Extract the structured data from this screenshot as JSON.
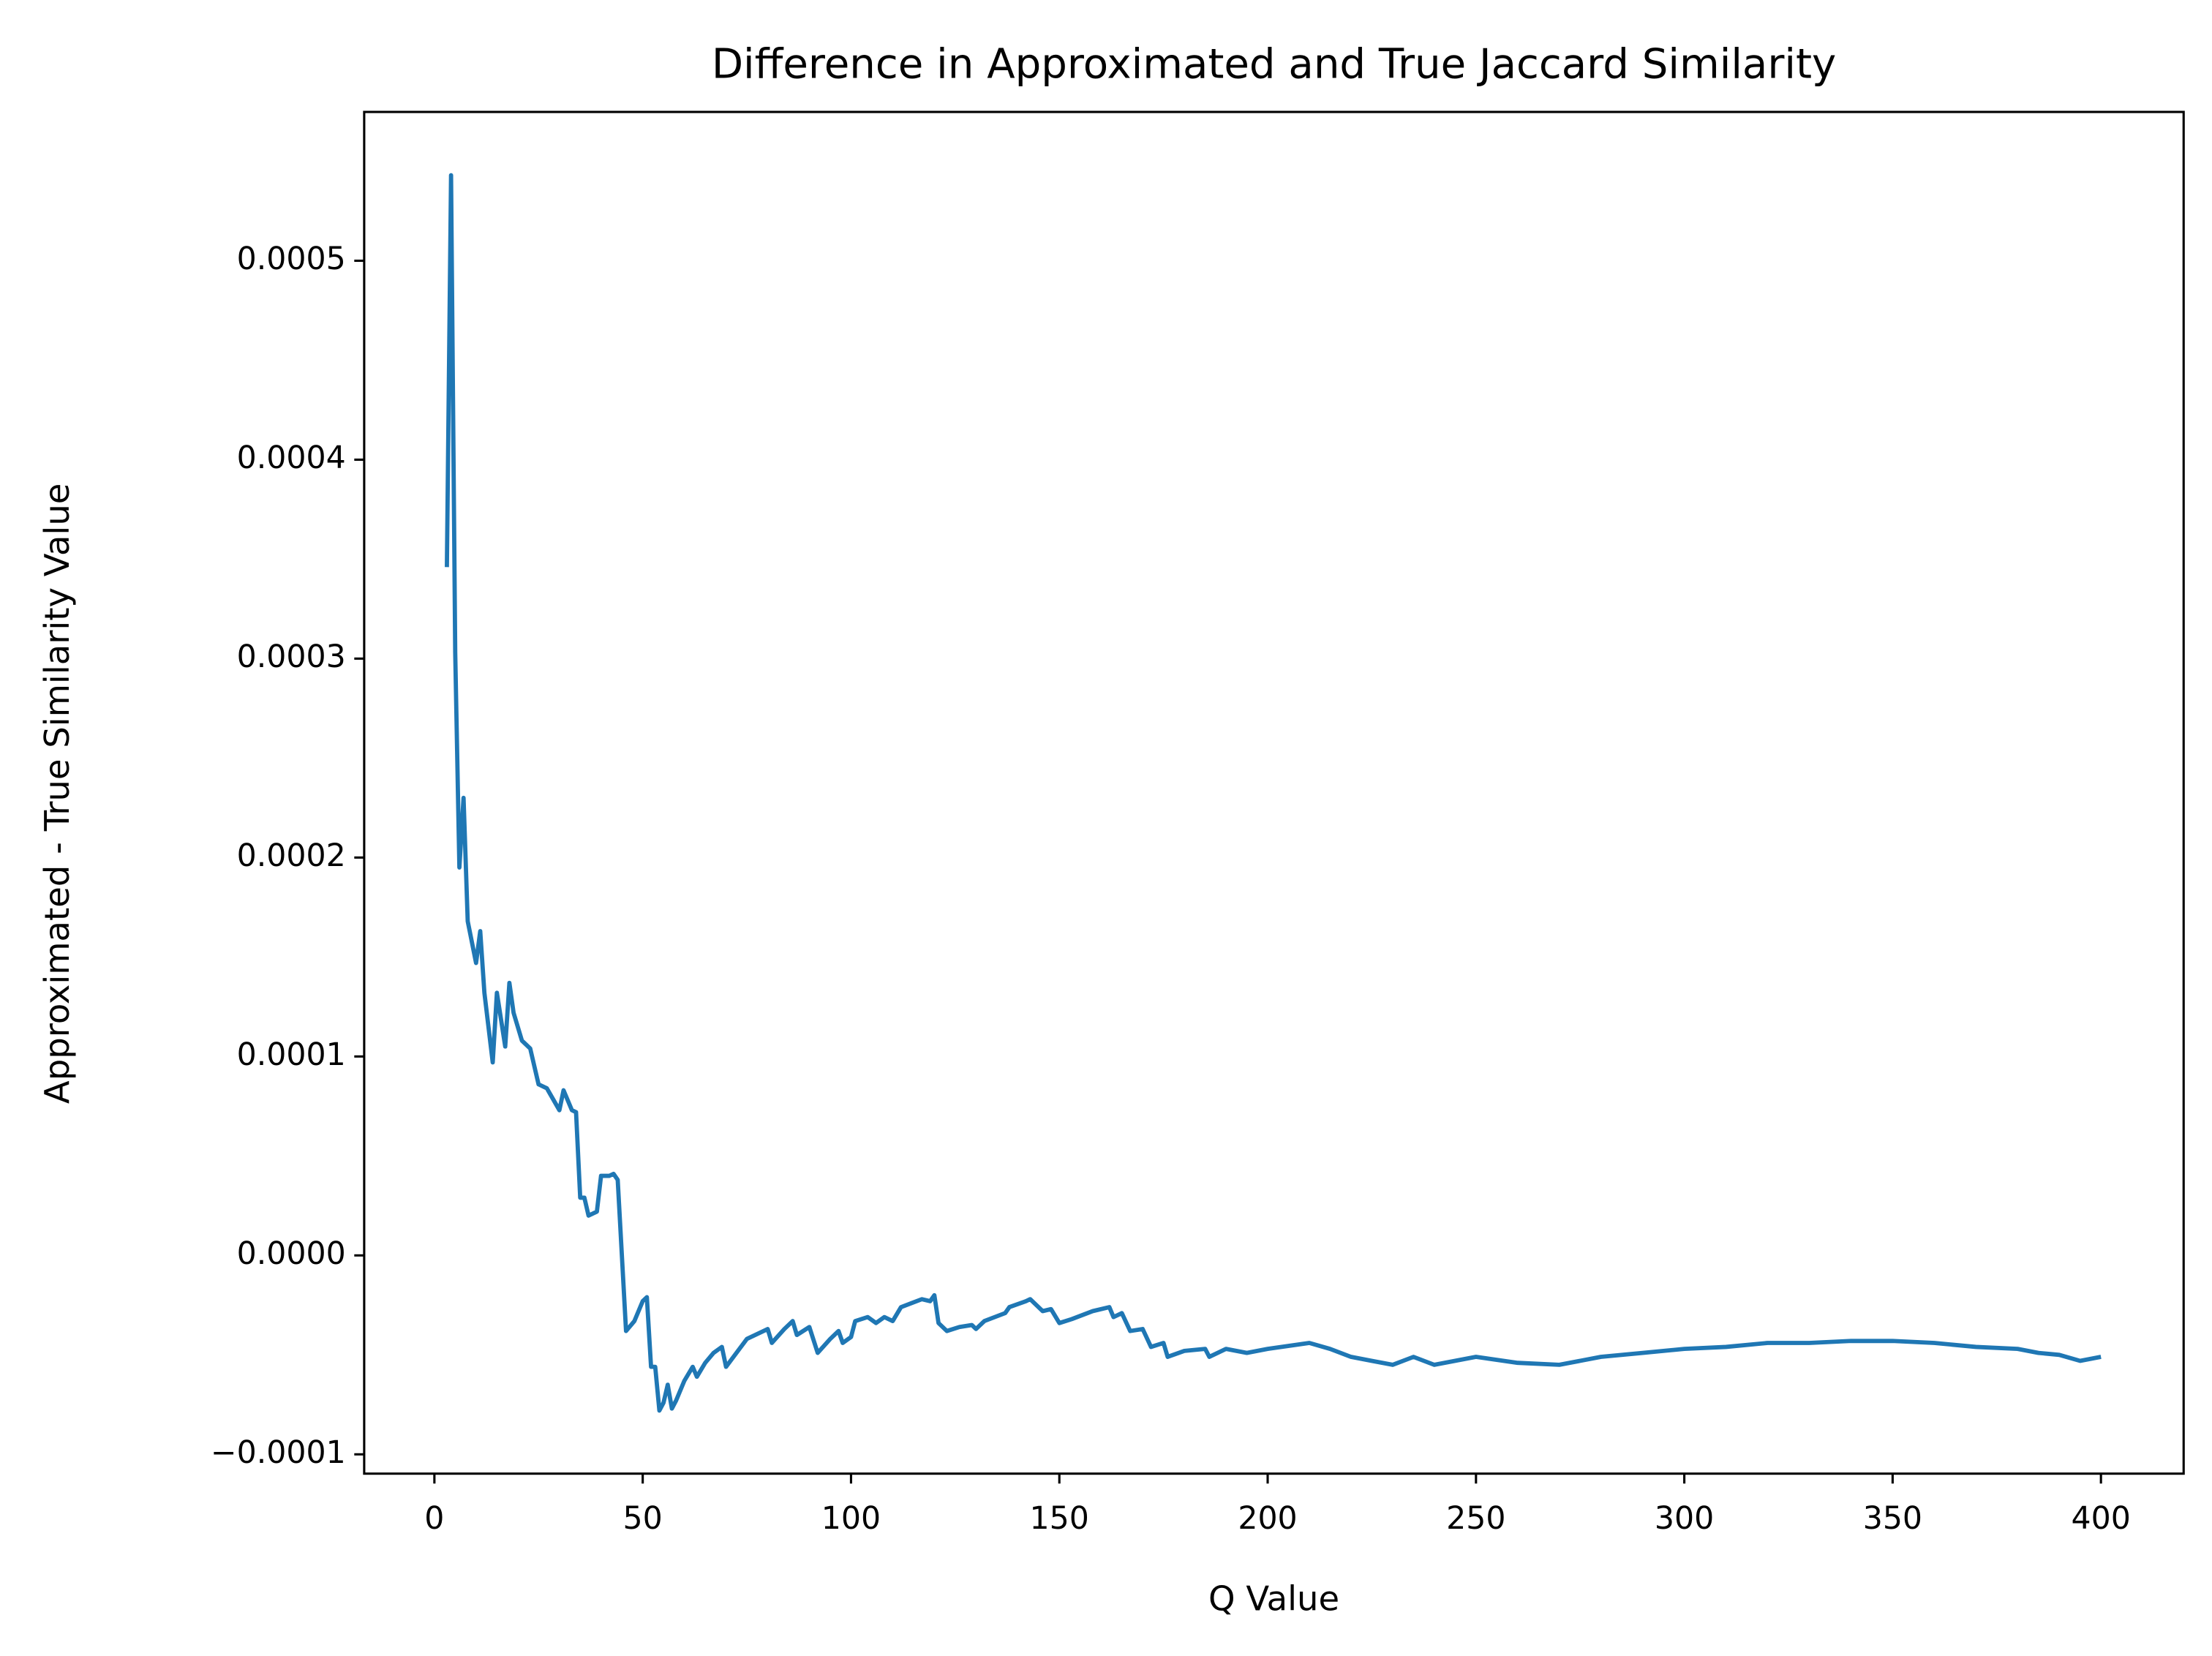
{
  "chart_data": {
    "type": "line",
    "title": "Difference in Approximated and True Jaccard Similarity",
    "x_label": "Q Value",
    "y_label": "Approximated - True Similarity Value",
    "color": "#1f77b4",
    "grid": false,
    "x": [
      3,
      4,
      5,
      6,
      7,
      8,
      10,
      11,
      12,
      14,
      15,
      17,
      18,
      19,
      21,
      23,
      25,
      27,
      30,
      31,
      33,
      34,
      35,
      36,
      37,
      39,
      40,
      42,
      43,
      44,
      46,
      48,
      50,
      51,
      52,
      53,
      54,
      55,
      56,
      57,
      58,
      60,
      62,
      63,
      65,
      67,
      69,
      70,
      75,
      80,
      81,
      84,
      86,
      87,
      90,
      92,
      95,
      97,
      98,
      100,
      101,
      104,
      106,
      108,
      110,
      112,
      117,
      119,
      120,
      121,
      123,
      126,
      129,
      130,
      132,
      137,
      138,
      142,
      143,
      146,
      148,
      150,
      153,
      158,
      162,
      163,
      165,
      167,
      170,
      172,
      175,
      176,
      180,
      185,
      186,
      190,
      195,
      200,
      210,
      215,
      220,
      225,
      230,
      235,
      240,
      250,
      260,
      270,
      280,
      290,
      300,
      310,
      320,
      330,
      340,
      350,
      360,
      370,
      380,
      385,
      390,
      395,
      400
    ],
    "values": [
      0.000346,
      0.000543,
      0.000303,
      0.000195,
      0.00023,
      0.000168,
      0.000147,
      0.000163,
      0.000132,
      9.7e-05,
      0.000132,
      0.000105,
      0.000137,
      0.000122,
      0.000108,
      0.000104,
      8.6e-05,
      8.4e-05,
      7.3e-05,
      8.3e-05,
      7.3e-05,
      7.2e-05,
      2.9e-05,
      2.9e-05,
      2e-05,
      2.2e-05,
      4e-05,
      4e-05,
      4.1e-05,
      3.8e-05,
      -3.8e-05,
      -3.3e-05,
      -2.3e-05,
      -2.1e-05,
      -5.6e-05,
      -5.6e-05,
      -7.8e-05,
      -7.4e-05,
      -6.5e-05,
      -7.7e-05,
      -7.3e-05,
      -6.3e-05,
      -5.6e-05,
      -6.1e-05,
      -5.4e-05,
      -4.9e-05,
      -4.6e-05,
      -5.6e-05,
      -4.2e-05,
      -3.7e-05,
      -4.4e-05,
      -3.7e-05,
      -3.3e-05,
      -4e-05,
      -3.6e-05,
      -4.9e-05,
      -4.2e-05,
      -3.8e-05,
      -4.4e-05,
      -4.1e-05,
      -3.3e-05,
      -3.1e-05,
      -3.4e-05,
      -3.1e-05,
      -3.3e-05,
      -2.6e-05,
      -2.2e-05,
      -2.3e-05,
      -2e-05,
      -3.4e-05,
      -3.8e-05,
      -3.6e-05,
      -3.5e-05,
      -3.7e-05,
      -3.3e-05,
      -2.9e-05,
      -2.6e-05,
      -2.3e-05,
      -2.2e-05,
      -2.8e-05,
      -2.7e-05,
      -3.4e-05,
      -3.2e-05,
      -2.8e-05,
      -2.6e-05,
      -3.1e-05,
      -2.9e-05,
      -3.8e-05,
      -3.7e-05,
      -4.6e-05,
      -4.4e-05,
      -5.1e-05,
      -4.8e-05,
      -4.7e-05,
      -5.1e-05,
      -4.7e-05,
      -4.9e-05,
      -4.7e-05,
      -4.4e-05,
      -4.7e-05,
      -5.1e-05,
      -5.3e-05,
      -5.5e-05,
      -5.1e-05,
      -5.5e-05,
      -5.1e-05,
      -5.4e-05,
      -5.5e-05,
      -5.1e-05,
      -4.9e-05,
      -4.7e-05,
      -4.6e-05,
      -4.4e-05,
      -4.4e-05,
      -4.3e-05,
      -4.3e-05,
      -4.4e-05,
      -4.6e-05,
      -4.7e-05,
      -4.9e-05,
      -5e-05,
      -5.3e-05,
      -5.1e-05
    ],
    "xlim": [
      -16.85,
      419.85
    ],
    "xticks": [
      0,
      50,
      100,
      150,
      200,
      250,
      300,
      350,
      400
    ],
    "ylim": [
      -0.0001097,
      0.0005748
    ],
    "yticks": [
      {
        "value": -0.0001,
        "label": "−0.0001"
      },
      {
        "value": 0,
        "label": "0.0000"
      },
      {
        "value": 0.0001,
        "label": "0.0001"
      },
      {
        "value": 0.0002,
        "label": "0.0002"
      },
      {
        "value": 0.0003,
        "label": "0.0003"
      },
      {
        "value": 0.0004,
        "label": "0.0004"
      },
      {
        "value": 0.0005,
        "label": "0.0005"
      }
    ]
  }
}
